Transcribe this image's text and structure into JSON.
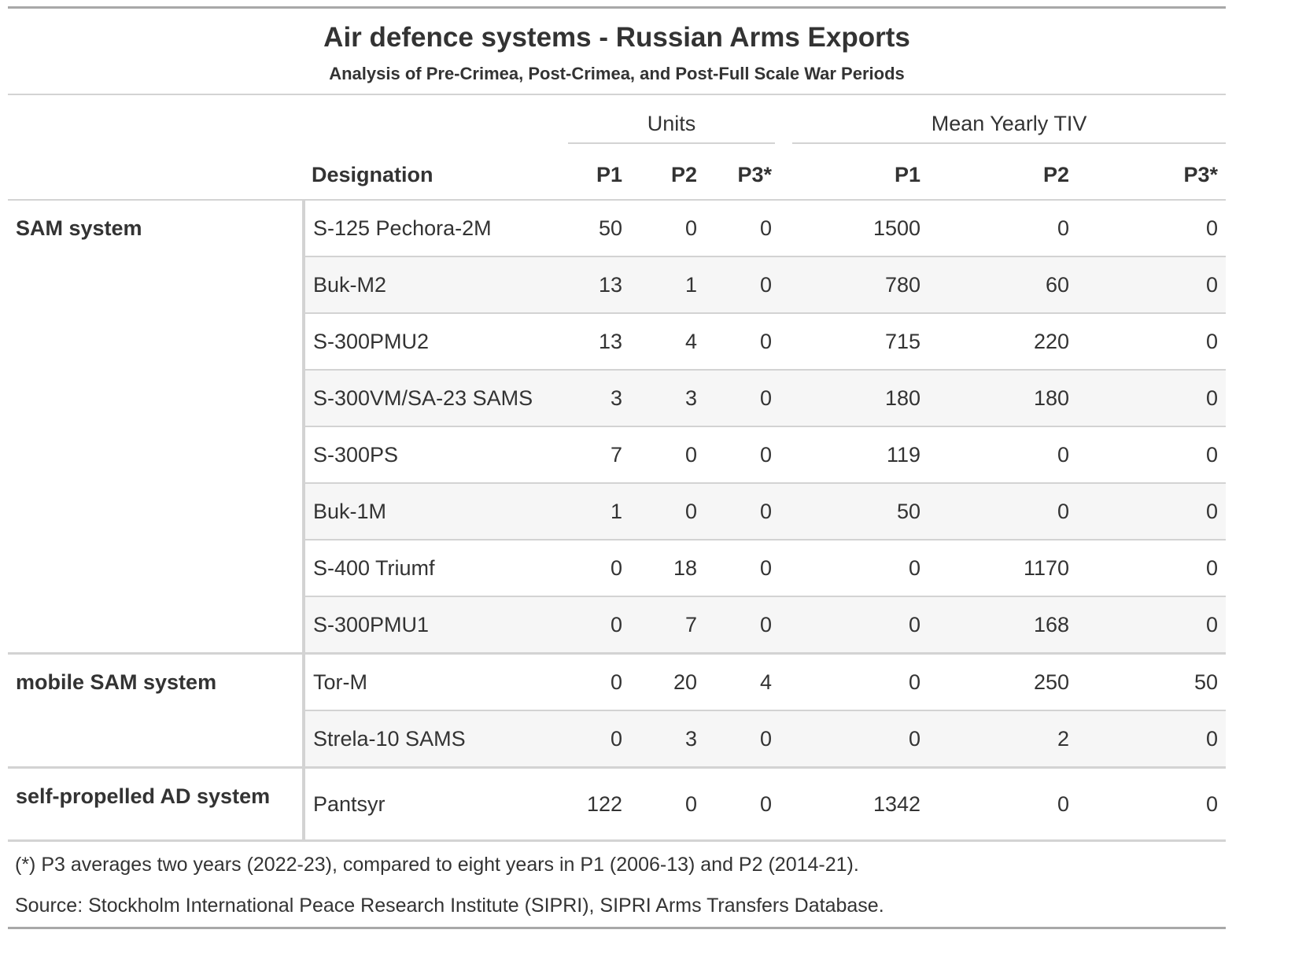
{
  "chart_data": {
    "type": "table",
    "title": "Air defence systems - Russian Arms Exports",
    "subtitle": "Analysis of Pre-Crimea, Post-Crimea, and Post-Full Scale War Periods",
    "spanners": {
      "units": "Units",
      "tiv": "Mean Yearly TIV"
    },
    "columns": {
      "designation": "Designation",
      "units": [
        "P1",
        "P2",
        "P3*"
      ],
      "tiv": [
        "P1",
        "P2",
        "P3*"
      ]
    },
    "groups": [
      {
        "name": "SAM system",
        "rows": [
          {
            "designation": "S-125 Pechora-2M",
            "units": [
              50,
              0,
              0
            ],
            "tiv": [
              1500,
              0,
              0
            ]
          },
          {
            "designation": "Buk-M2",
            "units": [
              13,
              1,
              0
            ],
            "tiv": [
              780,
              60,
              0
            ]
          },
          {
            "designation": "S-300PMU2",
            "units": [
              13,
              4,
              0
            ],
            "tiv": [
              715,
              220,
              0
            ]
          },
          {
            "designation": "S-300VM/SA-23 SAMS",
            "units": [
              3,
              3,
              0
            ],
            "tiv": [
              180,
              180,
              0
            ]
          },
          {
            "designation": "S-300PS",
            "units": [
              7,
              0,
              0
            ],
            "tiv": [
              119,
              0,
              0
            ]
          },
          {
            "designation": "Buk-1M",
            "units": [
              1,
              0,
              0
            ],
            "tiv": [
              50,
              0,
              0
            ]
          },
          {
            "designation": "S-400 Triumf",
            "units": [
              0,
              18,
              0
            ],
            "tiv": [
              0,
              1170,
              0
            ]
          },
          {
            "designation": "S-300PMU1",
            "units": [
              0,
              7,
              0
            ],
            "tiv": [
              0,
              168,
              0
            ]
          }
        ]
      },
      {
        "name": "mobile SAM system",
        "rows": [
          {
            "designation": "Tor-M",
            "units": [
              0,
              20,
              4
            ],
            "tiv": [
              0,
              250,
              50
            ]
          },
          {
            "designation": "Strela-10 SAMS",
            "units": [
              0,
              3,
              0
            ],
            "tiv": [
              0,
              2,
              0
            ]
          }
        ]
      },
      {
        "name": "self-propelled AD system",
        "rows": [
          {
            "designation": "Pantsyr",
            "units": [
              122,
              0,
              0
            ],
            "tiv": [
              1342,
              0,
              0
            ]
          }
        ]
      }
    ],
    "footnotes": [
      "(*) P3 averages two years (2022-23), compared to eight years in P1 (2006-13) and P2 (2014-21).",
      "Source: Stockholm International Peace Research Institute (SIPRI), SIPRI Arms Transfers Database."
    ]
  }
}
